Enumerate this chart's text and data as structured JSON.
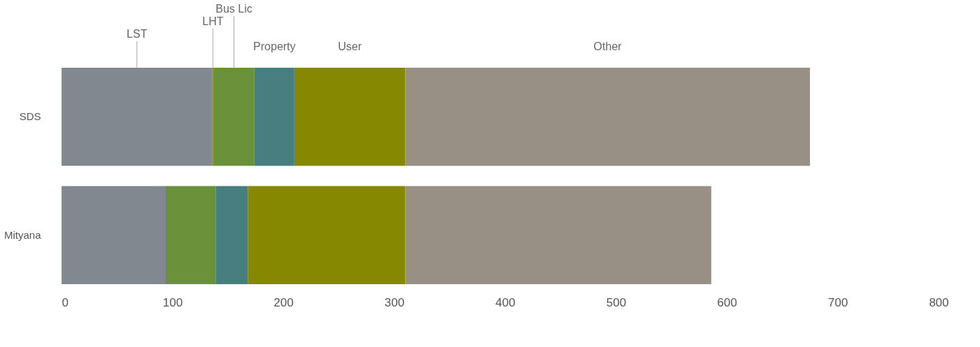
{
  "chart_data": {
    "type": "bar",
    "orientation": "horizontal",
    "stacked": true,
    "categories": [
      "SDS",
      "Mityana"
    ],
    "series": [
      {
        "name": "LST",
        "color": "#818890",
        "values": [
          136,
          94
        ]
      },
      {
        "name": "LHT",
        "color": "#8a8a10",
        "values": [
          1,
          0
        ]
      },
      {
        "name": "Bus Lic",
        "color": "#68913a",
        "values": [
          37,
          45
        ]
      },
      {
        "name": "Property",
        "color": "#477f80",
        "values": [
          36,
          29
        ]
      },
      {
        "name": "User",
        "color": "#858800",
        "values": [
          100,
          142
        ]
      },
      {
        "name": "Other",
        "color": "#988f85",
        "values": [
          365,
          276
        ]
      }
    ],
    "xlim": [
      0,
      800
    ],
    "xticks": [
      0,
      100,
      200,
      300,
      400,
      500,
      600,
      700,
      800
    ],
    "grid": false,
    "legend": false
  }
}
